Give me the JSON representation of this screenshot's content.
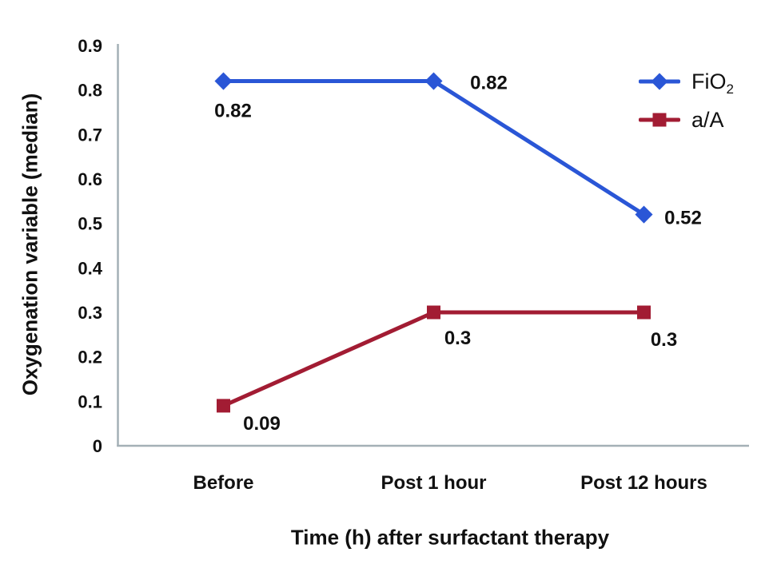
{
  "chart_data": {
    "type": "line",
    "title": "",
    "xlabel": "Time (h) after surfactant therapy",
    "ylabel": "Oxygenation variable (median)",
    "categories": [
      "Before",
      "Post 1 hour",
      "Post 12 hours"
    ],
    "y_axis": {
      "min": 0,
      "max": 0.9,
      "tick_interval": 0.1,
      "tick_labels": [
        "0",
        "0.1",
        "0.2",
        "0.3",
        "0.4",
        "0.5",
        "0.6",
        "0.7",
        "0.8",
        "0.9"
      ]
    },
    "grid": "off",
    "legend_position": "top-right",
    "axis_color": "#a4b0b6",
    "text_color": "#111111",
    "series": [
      {
        "name": "FiO2",
        "legend": {
          "base": "FiO",
          "sub": "2"
        },
        "color": "#2a56d6",
        "marker": "diamond",
        "values": [
          0.82,
          0.82,
          0.52
        ],
        "point_labels": [
          "0.82",
          "0.82",
          "0.52"
        ],
        "label_offsets": [
          [
            12,
            45
          ],
          [
            69,
            10
          ],
          [
            49,
            12
          ]
        ]
      },
      {
        "name": "a/A",
        "legend": {
          "base": "a/A",
          "sub": ""
        },
        "color": "#a21c33",
        "marker": "square",
        "values": [
          0.09,
          0.3,
          0.3
        ],
        "point_labels": [
          "0.09",
          "0.3",
          "0.3"
        ],
        "label_offsets": [
          [
            48,
            30
          ],
          [
            30,
            40
          ],
          [
            25,
            42
          ]
        ]
      }
    ]
  }
}
